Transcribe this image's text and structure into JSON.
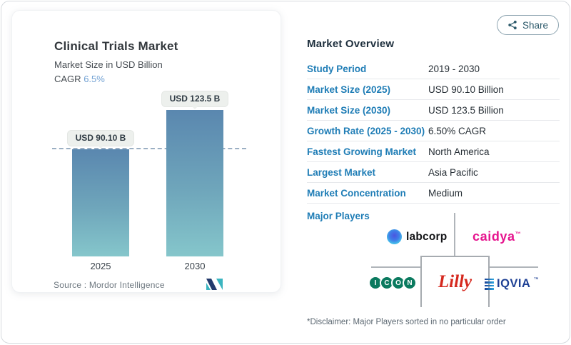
{
  "share": {
    "label": "Share"
  },
  "card": {
    "title": "Clinical Trials Market",
    "subtitle": "Market Size in USD Billion",
    "cagr_label": "CAGR",
    "cagr_value": "6.5%",
    "source_label": "Source :",
    "source_name": "Mordor Intelligence"
  },
  "chart_data": {
    "type": "bar",
    "title": "Clinical Trials Market",
    "ylabel": "Market Size in USD Billion",
    "categories": [
      "2025",
      "2030"
    ],
    "values": [
      90.1,
      123.5
    ],
    "bar_labels": [
      "USD 90.10 B",
      "USD 123.5 B"
    ],
    "cagr": "6.5%",
    "reference_line_value": 90.1,
    "bar_color_top": "#5a87af",
    "bar_color_bottom": "#85c6cb"
  },
  "overview": {
    "heading": "Market Overview",
    "rows": [
      {
        "label": "Study Period",
        "value": "2019 - 2030"
      },
      {
        "label": "Market Size (2025)",
        "value": "USD 90.10 Billion"
      },
      {
        "label": "Market Size (2030)",
        "value": "USD 123.5 Billion"
      },
      {
        "label": "Growth Rate (2025 - 2030)",
        "value": "6.50% CAGR"
      },
      {
        "label": "Fastest Growing Market",
        "value": "North America"
      },
      {
        "label": "Largest Market",
        "value": "Asia Pacific"
      },
      {
        "label": "Market Concentration",
        "value": "Medium"
      }
    ],
    "major_players_label": "Major Players",
    "players": [
      {
        "name": "labcorp"
      },
      {
        "name": "caidya",
        "tm": "™"
      },
      {
        "name": "ICON",
        "letters": [
          "I",
          "C",
          "O",
          "N"
        ]
      },
      {
        "name": "Lilly"
      },
      {
        "name": "IQVIA",
        "tm": "™"
      }
    ],
    "disclaimer": "*Disclaimer: Major Players sorted in no particular order"
  },
  "colors": {
    "label_blue": "#1f7db6",
    "cagr_accent": "#74a3d4",
    "caidya_pink": "#e6148e",
    "icon_green": "#0b7a5f",
    "iqvia_blue": "#1e4094",
    "lilly_red": "#d5281e",
    "mordor_navy": "#233a6c",
    "mordor_teal": "#3bb5c0"
  }
}
